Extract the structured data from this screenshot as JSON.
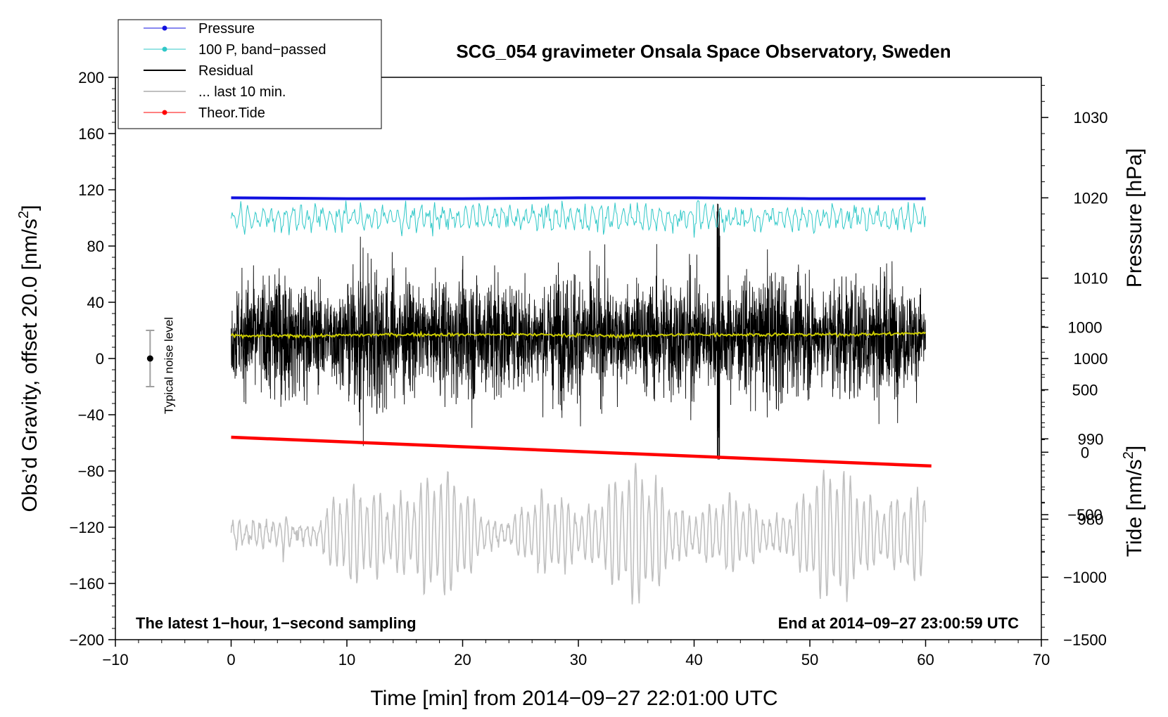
{
  "chart_data": {
    "type": "line",
    "title": "SCG_054 gravimeter Onsala Space Observatory, Sweden",
    "xlabel": "Time [min] from 2014−09−27 22:01:00 UTC",
    "ylabel": "Obs’d Gravity, offset 20.0 [nm/s²]",
    "ylabel_parts": {
      "main": "Obs’d Gravity, offset 20.0 [nm/s",
      "sup": "2",
      "close": "]"
    },
    "y2label": "Pressure [hPa]",
    "y3label_parts": {
      "main": "Tide [nm/s",
      "sup": "2",
      "close": "]"
    },
    "xlim": [
      -10,
      70
    ],
    "ylim": [
      -200,
      200
    ],
    "pressure_lim": [
      965,
      1035
    ],
    "tide_lim": [
      -1500,
      3000
    ],
    "x_ticks": [
      "−10",
      "0",
      "10",
      "20",
      "30",
      "40",
      "50",
      "60",
      "70"
    ],
    "x_tick_values": [
      -10,
      0,
      10,
      20,
      30,
      40,
      50,
      60,
      70
    ],
    "y_ticks": [
      "200",
      "160",
      "120",
      "80",
      "40",
      "0",
      "−40",
      "−80",
      "−120",
      "−160",
      "−200"
    ],
    "y_tick_values": [
      200,
      160,
      120,
      80,
      40,
      0,
      -40,
      -80,
      -120,
      -160,
      -200
    ],
    "pressure_ticks": [
      "1030",
      "1020",
      "1010",
      "1000",
      "990",
      "980"
    ],
    "pressure_tick_values": [
      1030,
      1020,
      1010,
      1000,
      990,
      980
    ],
    "tide_ticks": [
      "1000",
      "500",
      "0",
      "−500",
      "−1000",
      "−1500"
    ],
    "tide_tick_values": [
      1000,
      500,
      0,
      -500,
      -1000,
      -1500
    ],
    "legend": [
      {
        "name": "Pressure",
        "color": "#1010e0",
        "marker": true
      },
      {
        "name": "100 P, band−passed",
        "color": "#30c8c8",
        "marker": true
      },
      {
        "name": "Residual",
        "color": "#000000",
        "marker": false
      },
      {
        "name": "... last 10 min.",
        "color": "#c0c0c0",
        "marker": false
      },
      {
        "name": "Theor.Tide",
        "color": "#ff0000",
        "marker": true
      }
    ],
    "legend_position": "top-left",
    "series": [
      {
        "name": "Pressure",
        "axis": "pressure",
        "color": "#1010e0",
        "x_range": [
          0,
          60
        ],
        "approx_value": 1020,
        "values_hpa": [
          1020.0,
          1019.9,
          1019.9,
          1020.0,
          1020.0,
          1019.9,
          1019.9
        ]
      },
      {
        "name": "100 P, band−passed",
        "axis": "gravity",
        "color": "#30c8c8",
        "x_range": [
          0,
          60
        ],
        "mean": 100,
        "amplitude_range": [
          -14,
          18
        ]
      },
      {
        "name": "Residual",
        "axis": "gravity",
        "color": "#000000",
        "x_range": [
          0,
          60
        ],
        "mean": 16,
        "min": -72,
        "max": 116,
        "notable_spike_at_min": 42.1
      },
      {
        "name": "Residual smoothed",
        "axis": "gravity",
        "color": "#cccc00",
        "x_range": [
          0,
          60
        ],
        "values": [
          16,
          16,
          17,
          17,
          17,
          16,
          17,
          17,
          17,
          18
        ]
      },
      {
        "name": "... last 10 min.",
        "axis": "gravity",
        "color": "#c0c0c0",
        "x_range": [
          0,
          60
        ],
        "mean": -125,
        "amplitude_range": [
          -180,
          -66
        ]
      },
      {
        "name": "Theor.Tide",
        "axis": "tide",
        "color": "#ff0000",
        "x": [
          0,
          60.5
        ],
        "values": [
          120,
          -110
        ]
      }
    ],
    "noise_indicator": {
      "label": "Typical noise level",
      "x": -7,
      "center": 0,
      "low": -20,
      "high": 20
    },
    "annotations": {
      "bottom_left": "The latest 1−hour, 1−second sampling",
      "bottom_right": "End at 2014−09−27 23:00:59 UTC"
    }
  }
}
